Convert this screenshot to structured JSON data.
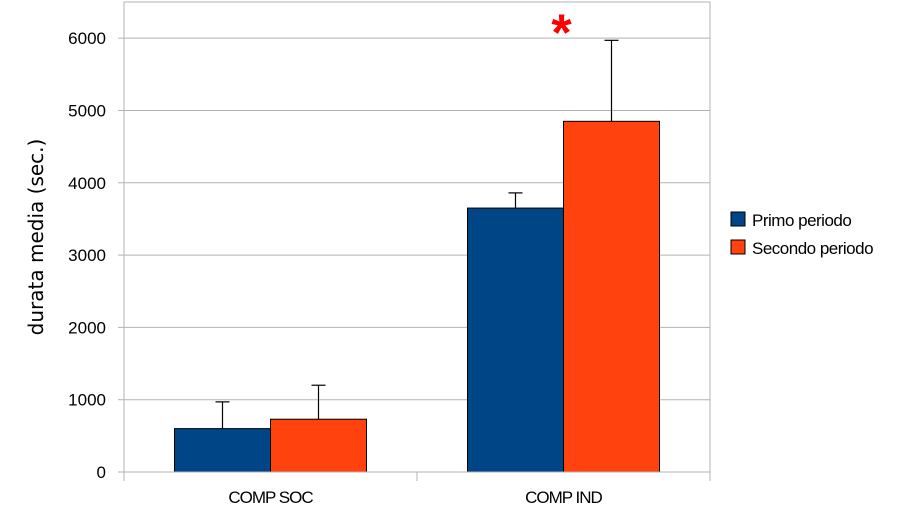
{
  "chart_data": {
    "type": "bar",
    "categories": [
      "COMP SOC",
      "COMP IND"
    ],
    "series": [
      {
        "name": "Primo periodo",
        "color": "#004586",
        "values": [
          600,
          3650
        ],
        "error": [
          370,
          210
        ]
      },
      {
        "name": "Secondo periodo",
        "color": "#ff420e",
        "values": [
          730,
          4850
        ],
        "error": [
          470,
          1120
        ]
      }
    ],
    "ylabel": "durata media (sec.)",
    "xlabel": "",
    "ylim": [
      0,
      6500
    ],
    "yticks": [
      0,
      1000,
      2000,
      3000,
      4000,
      5000,
      6000
    ],
    "grid": true,
    "legend_position": "right",
    "annotation": {
      "text": "*",
      "category": "COMP IND",
      "series": "Secondo periodo",
      "color": "#ff0000"
    }
  }
}
